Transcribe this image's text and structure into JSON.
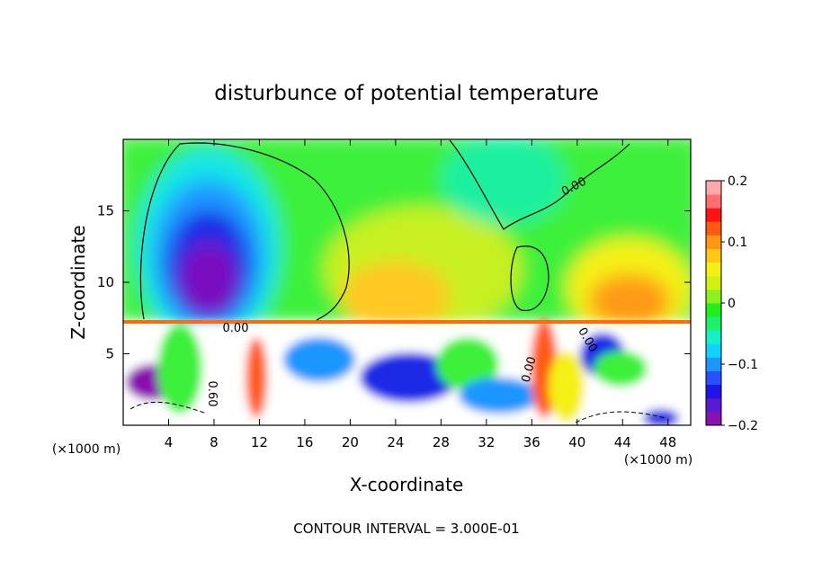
{
  "chart_data": {
    "type": "heatmap",
    "title": "disturbunce of potential temperature",
    "xlabel": "X-coordinate",
    "ylabel": "Z-coordinate",
    "x_unit": "(×1000 m)",
    "y_unit": "(×1000 m)",
    "xlim": [
      0,
      50
    ],
    "ylim": [
      0,
      20
    ],
    "x_ticks": [
      4,
      8,
      12,
      16,
      20,
      24,
      28,
      32,
      36,
      40,
      44,
      48
    ],
    "y_ticks": [
      5,
      10,
      15
    ],
    "colorbar": {
      "vmin": -0.2,
      "vmax": 0.2,
      "tick_values": [
        0.2,
        0.1,
        0,
        -0.1,
        -0.2
      ],
      "tick_labels": [
        "0.2",
        "0.1",
        "0",
        "−0.1",
        "−0.2"
      ],
      "colors": [
        "#8a10b0",
        "#5a1ad2",
        "#1e16e6",
        "#2850ff",
        "#1e96ff",
        "#10d2ff",
        "#14f0c8",
        "#1ef06e",
        "#20ee20",
        "#8cf01e",
        "#d2f014",
        "#f5f014",
        "#ffc814",
        "#ff9614",
        "#ff5a14",
        "#ff1414",
        "#ff6e6e",
        "#ffaaaa"
      ]
    },
    "contour_labels": [
      "0.00",
      "0.00",
      "0.60",
      "0.00",
      "0.00"
    ],
    "footer": "CONTOUR INTERVAL = 3.000E-01"
  }
}
